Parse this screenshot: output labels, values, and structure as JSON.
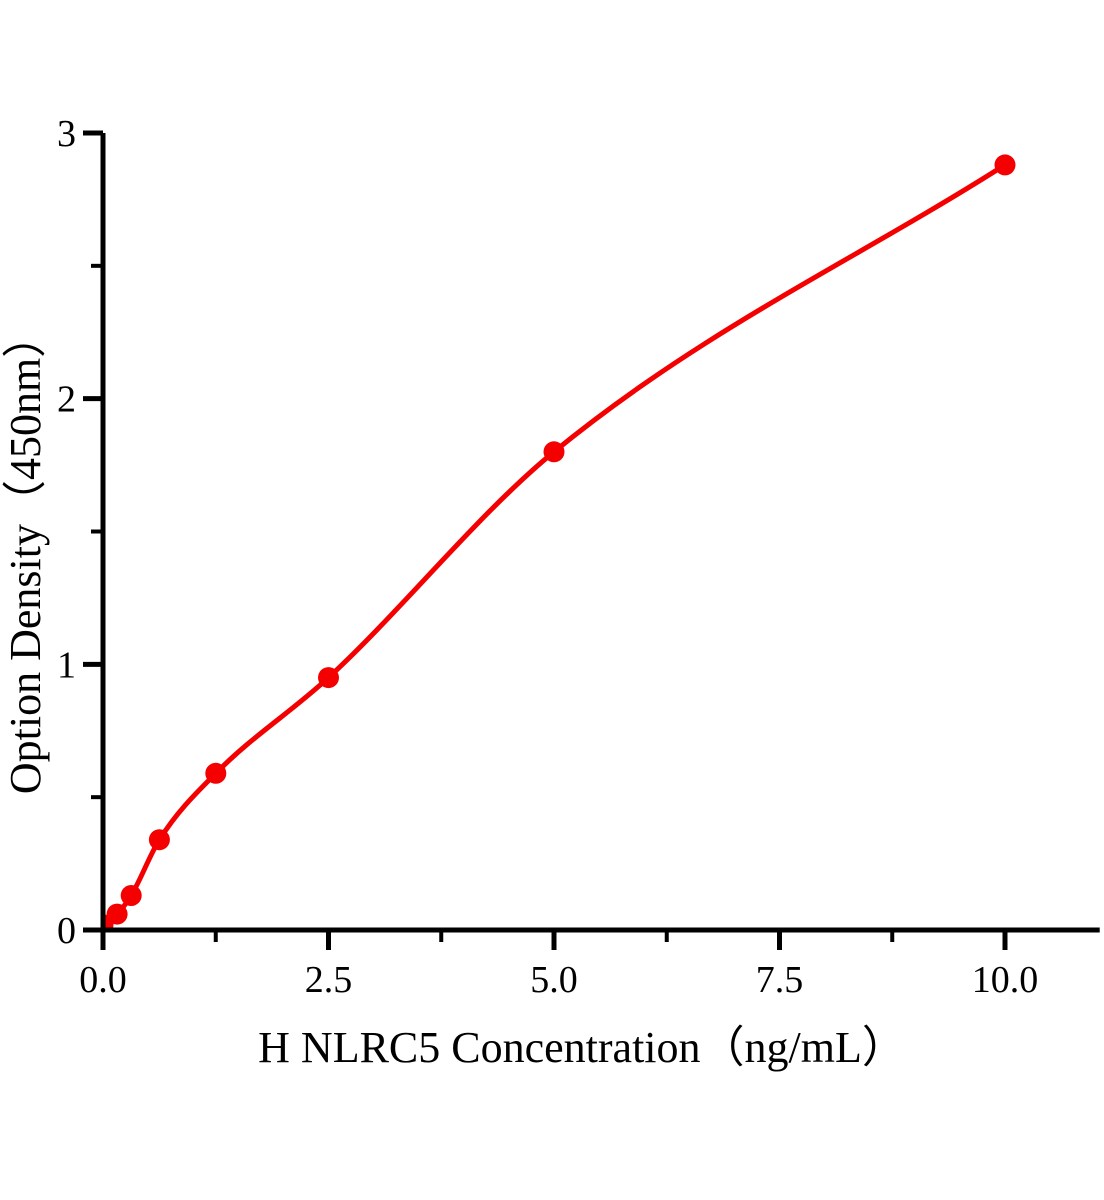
{
  "figure": {
    "background_color": "#ffffff",
    "axis_color": "#000000"
  },
  "chart_data": {
    "type": "scatter",
    "title": "",
    "xlabel": "H NLRC5 Concentration（ng/mL）",
    "ylabel": "Option Density（450nm）",
    "x": [
      0,
      0.156,
      0.3125,
      0.625,
      1.25,
      2.5,
      5,
      10
    ],
    "y": [
      0.02,
      0.06,
      0.13,
      0.34,
      0.59,
      0.95,
      1.8,
      2.88
    ],
    "fit_line": true,
    "marker_color": "#f40000",
    "line_color": "#f40000",
    "xlim": [
      0,
      11.05
    ],
    "ylim": [
      0,
      3
    ],
    "x_ticks_major": {
      "values": [
        0,
        2.5,
        5,
        7.5,
        10
      ],
      "labels": [
        "0.0",
        "2.5",
        "5.0",
        "7.5",
        "10.0"
      ]
    },
    "x_ticks_minor": [
      1.25,
      3.75,
      6.25,
      8.75
    ],
    "y_ticks_major": {
      "values": [
        0,
        1,
        2,
        3
      ],
      "labels": [
        "0",
        "1",
        "2",
        "3"
      ]
    },
    "y_ticks_minor": [
      0.5,
      1.5,
      2.5
    ],
    "grid": false,
    "legend_position": "none"
  }
}
